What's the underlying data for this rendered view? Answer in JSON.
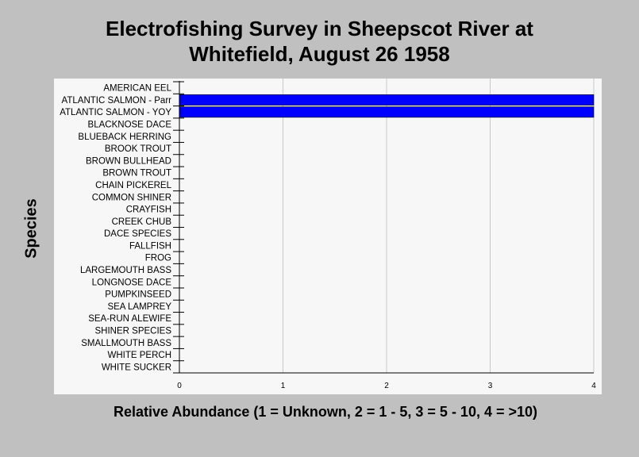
{
  "chart_data": {
    "type": "bar",
    "orientation": "horizontal",
    "title_lines": [
      "Electrofishing Survey in Sheepscot River at",
      "Whitefield, August 26 1958"
    ],
    "xlabel": "Relative Abundance (1 = Unknown, 2 = 1 - 5, 3 = 5 - 10, 4 = >10)",
    "ylabel": "Species",
    "xlim": [
      0,
      4
    ],
    "xticks": [
      "0",
      "1",
      "2",
      "3",
      "4"
    ],
    "grid": "vertical",
    "bar_color": "#0000ff",
    "categories": [
      "AMERICAN EEL",
      "ATLANTIC SALMON - Parr",
      "ATLANTIC SALMON - YOY",
      "BLACKNOSE DACE",
      "BLUEBACK HERRING",
      "BROOK TROUT",
      "BROWN BULLHEAD",
      "BROWN TROUT",
      "CHAIN PICKEREL",
      "COMMON SHINER",
      "CRAYFISH",
      "CREEK CHUB",
      "DACE SPECIES",
      "FALLFISH",
      "FROG",
      "LARGEMOUTH BASS",
      "LONGNOSE DACE",
      "PUMPKINSEED",
      "SEA LAMPREY",
      "SEA-RUN ALEWIFE",
      "SHINER SPECIES",
      "SMALLMOUTH BASS",
      "WHITE PERCH",
      "WHITE SUCKER"
    ],
    "values": [
      0,
      4,
      4,
      0,
      0,
      0,
      0,
      0,
      0,
      0,
      0,
      0,
      0,
      0,
      0,
      0,
      0,
      0,
      0,
      0,
      0,
      0,
      0,
      0
    ]
  }
}
